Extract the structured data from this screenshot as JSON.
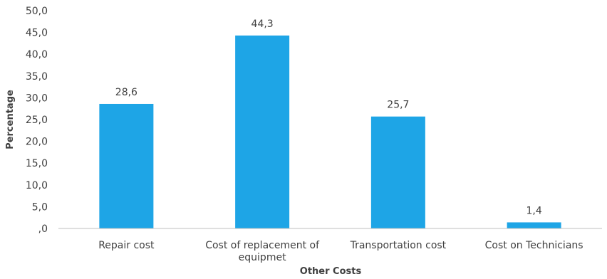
{
  "chart_data": {
    "type": "bar",
    "categories": [
      "Repair cost",
      "Cost of replacement of equipmet",
      "Transportation cost",
      "Cost on Technicians"
    ],
    "category_lines": [
      [
        "Repair cost"
      ],
      [
        "Cost of replacement of",
        "equipmet"
      ],
      [
        "Transportation cost"
      ],
      [
        "Cost on Technicians"
      ]
    ],
    "values": [
      28.6,
      44.3,
      25.7,
      1.4
    ],
    "data_labels": [
      "28,6",
      "44,3",
      "25,7",
      "1,4"
    ],
    "xlabel": "Other Costs",
    "ylabel": "Percentage",
    "ylim": [
      0,
      50
    ],
    "yticks": [
      ",0",
      "5,0",
      "10,0",
      "15,0",
      "20,0",
      "25,0",
      "30,0",
      "35,0",
      "40,0",
      "45,0",
      "50,0"
    ],
    "grid": false,
    "bar_color": "#1ea5e6",
    "axis_color": "#bfbfbf"
  }
}
